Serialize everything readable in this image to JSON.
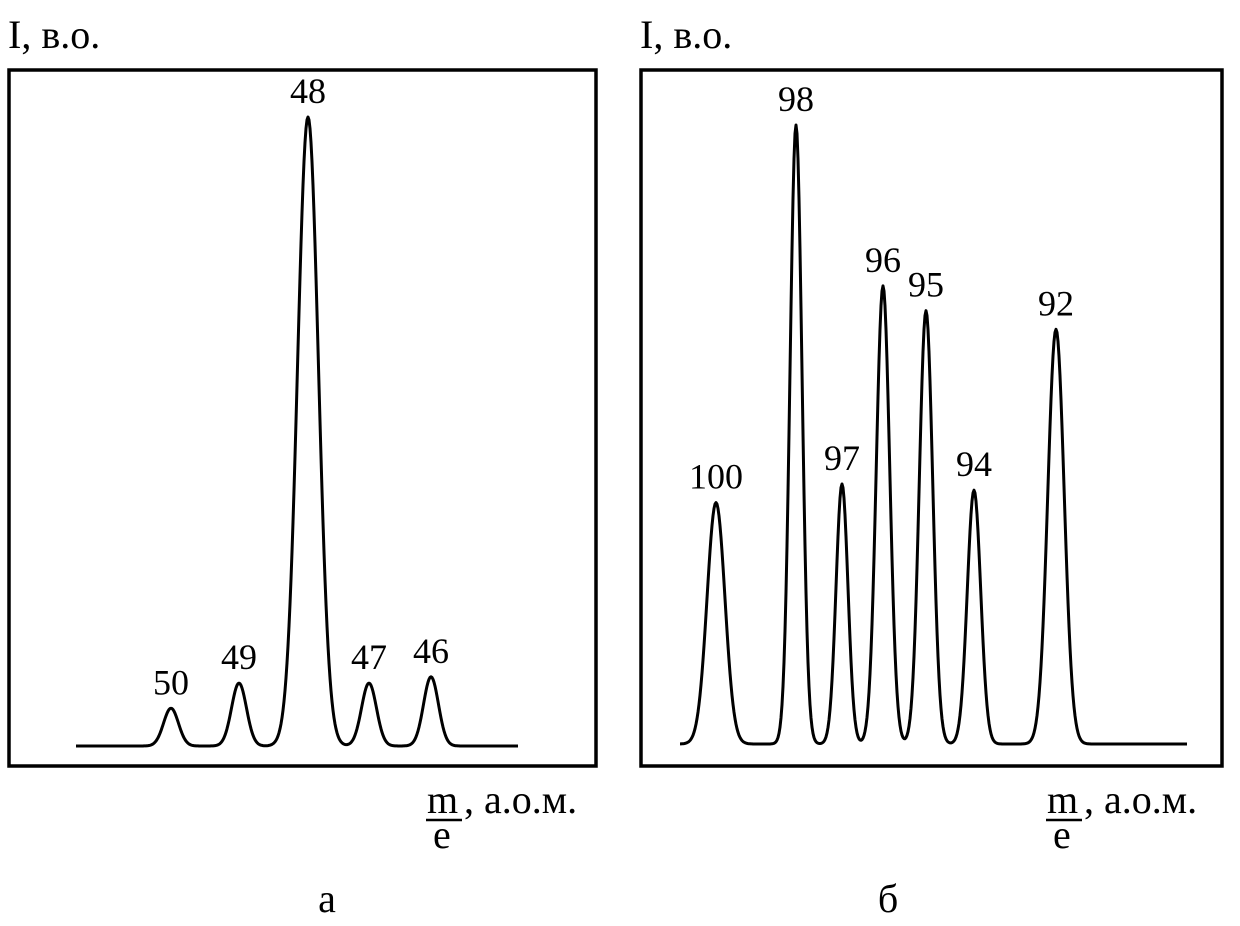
{
  "chart_data": [
    {
      "type": "line",
      "panel_label": "а",
      "ylabel": "I, в.о.",
      "xlabel_fraction": {
        "numerator": "m",
        "denominator": "e"
      },
      "xlabel_unit": ", а.о.м.",
      "grid": false,
      "peaks": [
        {
          "label": "50",
          "rel_intensity": 0.06
        },
        {
          "label": "49",
          "rel_intensity": 0.1
        },
        {
          "label": "48",
          "rel_intensity": 1.0
        },
        {
          "label": "47",
          "rel_intensity": 0.1
        },
        {
          "label": "46",
          "rel_intensity": 0.11
        }
      ]
    },
    {
      "type": "line",
      "panel_label": "б",
      "ylabel": "I, в.о.",
      "xlabel_fraction": {
        "numerator": "m",
        "denominator": "e"
      },
      "xlabel_unit": ", а.о.м.",
      "grid": false,
      "peaks": [
        {
          "label": "100",
          "rel_intensity": 0.39
        },
        {
          "label": "98",
          "rel_intensity": 1.0
        },
        {
          "label": "97",
          "rel_intensity": 0.42
        },
        {
          "label": "96",
          "rel_intensity": 0.74
        },
        {
          "label": "95",
          "rel_intensity": 0.7
        },
        {
          "label": "94",
          "rel_intensity": 0.41
        },
        {
          "label": "92",
          "rel_intensity": 0.67
        }
      ]
    }
  ],
  "colors": {
    "line": "#000000",
    "background": "#ffffff"
  }
}
